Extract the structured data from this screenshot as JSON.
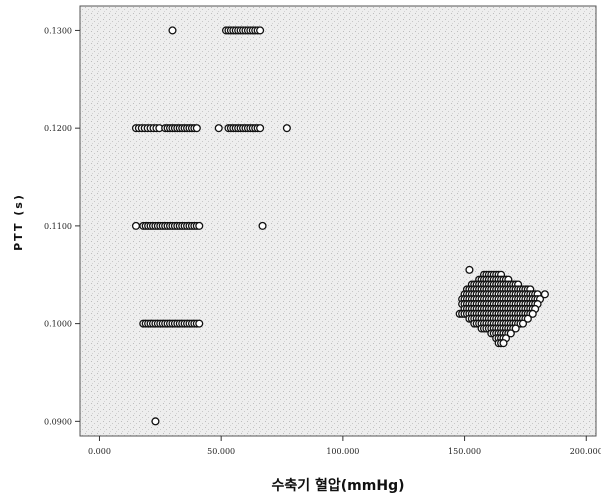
{
  "chart_data": {
    "type": "scatter",
    "title": "",
    "xlabel": "수축기 혈압(mmHg)",
    "ylabel": "PTT  (s)",
    "xlim": [
      -8,
      204
    ],
    "ylim": [
      0.0885,
      0.1325
    ],
    "x_ticks": [
      {
        "value": 0,
        "label": "0.000"
      },
      {
        "value": 50,
        "label": "50.000"
      },
      {
        "value": 100,
        "label": "100.000"
      },
      {
        "value": 150,
        "label": "150.000"
      },
      {
        "value": 200,
        "label": "200.000"
      }
    ],
    "y_ticks": [
      {
        "value": 0.09,
        "label": "0.0900"
      },
      {
        "value": 0.1,
        "label": "0.1000"
      },
      {
        "value": 0.11,
        "label": "0.1100"
      },
      {
        "value": 0.12,
        "label": "0.1200"
      },
      {
        "value": 0.13,
        "label": "0.1300"
      }
    ],
    "grid": false,
    "marker": "open-circle",
    "background": "#ececec",
    "series": [
      {
        "points": [
          {
            "x": 30,
            "y": 0.13
          },
          {
            "x": 23,
            "y": 0.09
          },
          {
            "x": 77,
            "y": 0.12
          },
          {
            "x": 15,
            "y": 0.11
          },
          {
            "x": 67,
            "y": 0.11
          },
          {
            "x": 49,
            "y": 0.12
          },
          {
            "x": 152,
            "y": 0.1055
          },
          {
            "x": 183,
            "y": 0.103
          }
        ],
        "ranges": [
          {
            "x_start": 52,
            "x_end": 66,
            "y": 0.13,
            "step": 1.0
          },
          {
            "x_start": 15,
            "x_end": 25,
            "y": 0.12,
            "step": 1.2
          },
          {
            "x_start": 27,
            "x_end": 40,
            "y": 0.12,
            "step": 1.0
          },
          {
            "x_start": 53,
            "x_end": 66,
            "y": 0.12,
            "step": 1.0
          },
          {
            "x_start": 18,
            "x_end": 41,
            "y": 0.11,
            "step": 1.0
          },
          {
            "x_start": 18,
            "x_end": 41,
            "y": 0.1,
            "step": 1.0
          }
        ],
        "cluster": [
          {
            "x_start": 158,
            "x_end": 165,
            "y": 0.105
          },
          {
            "x_start": 156,
            "x_end": 168,
            "y": 0.1045
          },
          {
            "x_start": 153,
            "x_end": 172,
            "y": 0.104
          },
          {
            "x_start": 151,
            "x_end": 177,
            "y": 0.1035
          },
          {
            "x_start": 150,
            "x_end": 180,
            "y": 0.103
          },
          {
            "x_start": 149,
            "x_end": 181,
            "y": 0.1025
          },
          {
            "x_start": 149,
            "x_end": 180,
            "y": 0.102
          },
          {
            "x_start": 150,
            "x_end": 179,
            "y": 0.1015
          },
          {
            "x_start": 148,
            "x_end": 178,
            "y": 0.101
          },
          {
            "x_start": 152,
            "x_end": 176,
            "y": 0.1005
          },
          {
            "x_start": 154,
            "x_end": 174,
            "y": 0.1
          },
          {
            "x_start": 157,
            "x_end": 171,
            "y": 0.0995
          },
          {
            "x_start": 161,
            "x_end": 169,
            "y": 0.099
          },
          {
            "x_start": 163,
            "x_end": 167,
            "y": 0.0985
          },
          {
            "x_start": 164,
            "x_end": 166,
            "y": 0.098
          }
        ]
      }
    ]
  }
}
